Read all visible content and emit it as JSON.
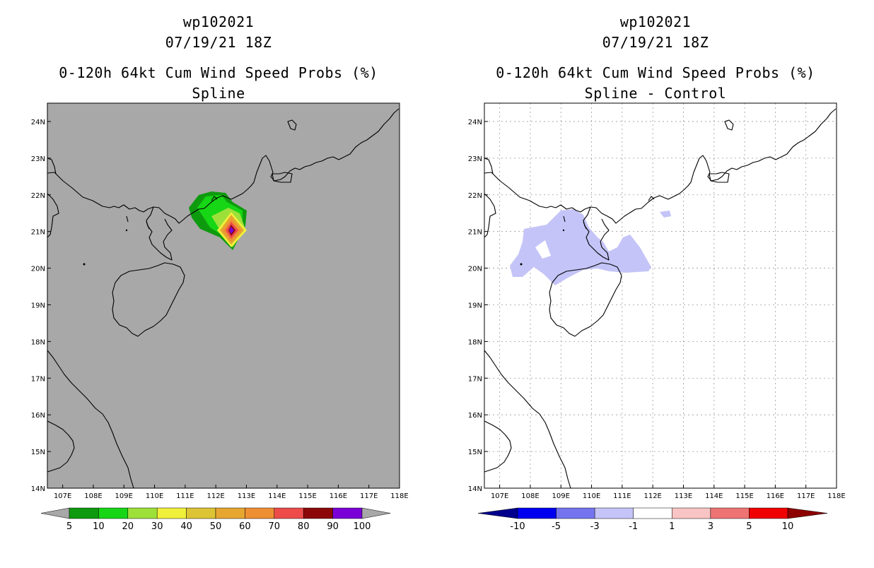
{
  "panels": [
    {
      "id": "left",
      "title_line1": "wp102021",
      "title_line2": "07/19/21 18Z",
      "title_line3": "0-120h 64kt Cum Wind Speed Probs (%)",
      "title_line4": "Spline",
      "colorbar": {
        "labels": [
          "5",
          "10",
          "20",
          "30",
          "40",
          "50",
          "60",
          "70",
          "80",
          "90",
          "100"
        ],
        "colors": [
          "#a8a8a8",
          "#0e9a0e",
          "#16d616",
          "#9de03a",
          "#f0f03a",
          "#dcc434",
          "#e6a630",
          "#ef8f34",
          "#ee4b4b",
          "#8c0808",
          "#7a00d8",
          "#a8a8a8"
        ]
      }
    },
    {
      "id": "right",
      "title_line1": "wp102021",
      "title_line2": "07/19/21 18Z",
      "title_line3": "0-120h 64kt Cum Wind Speed Probs (%)",
      "title_line4": "Spline - Control",
      "colorbar": {
        "labels": [
          "-10",
          "-5",
          "-3",
          "-1",
          "1",
          "3",
          "5",
          "10"
        ],
        "colors": [
          "#00008c",
          "#0000f0",
          "#7474ee",
          "#c4c4f8",
          "#ffffff",
          "#f8c4c4",
          "#ee7474",
          "#f00000",
          "#8c0000"
        ]
      }
    }
  ],
  "chart_data": [
    {
      "type": "heatmap",
      "title": "0-120h 64kt Cum Wind Speed Probs (%) — Spline",
      "storm": "wp102021",
      "valid": "07/19/21 18Z",
      "lon_ticks": [
        "107E",
        "108E",
        "109E",
        "110E",
        "111E",
        "112E",
        "113E",
        "114E",
        "115E",
        "116E",
        "117E",
        "118E"
      ],
      "lat_ticks": [
        "14N",
        "15N",
        "16N",
        "17N",
        "18N",
        "19N",
        "20N",
        "21N",
        "22N",
        "23N",
        "24N"
      ],
      "xlim": [
        106.5,
        118.0
      ],
      "ylim": [
        14.0,
        24.5
      ],
      "contour_levels": [
        5,
        10,
        20,
        30,
        40,
        50,
        60,
        70,
        80,
        90,
        100
      ],
      "max_probability_location": [
        112.5,
        21.0
      ],
      "max_probability": 100
    },
    {
      "type": "heatmap",
      "title": "0-120h 64kt Cum Wind Speed Probs (%) — Spline - Control",
      "storm": "wp102021",
      "valid": "07/19/21 18Z",
      "lon_ticks": [
        "107E",
        "108E",
        "109E",
        "110E",
        "111E",
        "112E",
        "113E",
        "114E",
        "115E",
        "116E",
        "117E",
        "118E"
      ],
      "lat_ticks": [
        "14N",
        "15N",
        "16N",
        "17N",
        "18N",
        "19N",
        "20N",
        "21N",
        "22N",
        "23N",
        "24N"
      ],
      "xlim": [
        106.5,
        118.0
      ],
      "ylim": [
        14.0,
        24.5
      ],
      "contour_levels": [
        -10,
        -5,
        -3,
        -1,
        1,
        3,
        5,
        10
      ],
      "shaded_region": "-3 to -1 difference over Gulf of Tonkin and Leizhou Peninsula"
    }
  ]
}
